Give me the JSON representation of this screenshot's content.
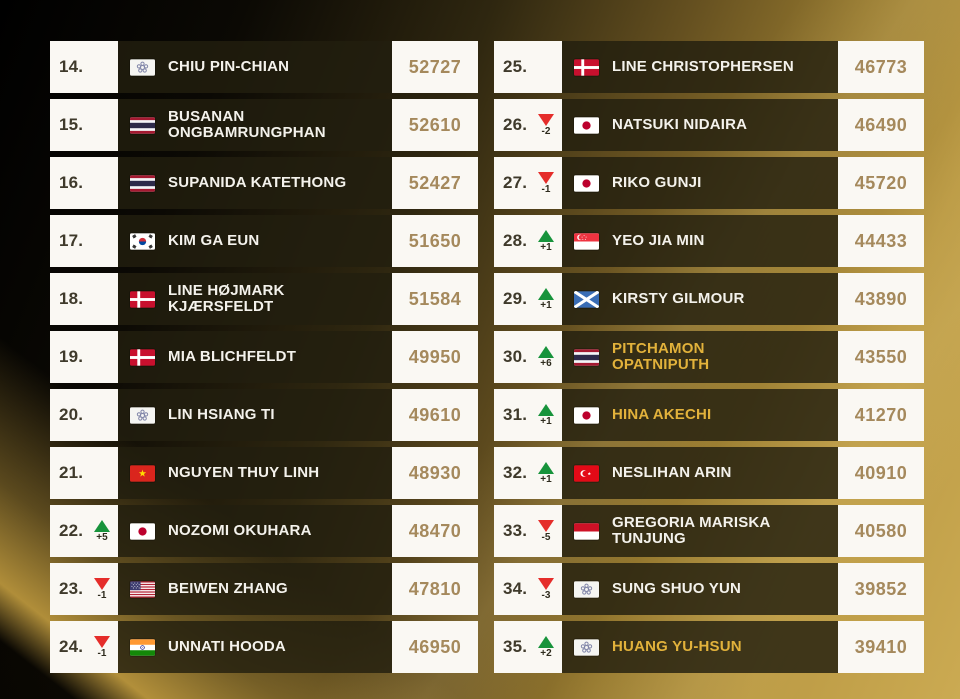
{
  "chart_data": {
    "type": "table",
    "left_rows": [
      {
        "rank": "14.",
        "country": "tpe",
        "name": "CHIU PIN-CHIAN",
        "points": "52727"
      },
      {
        "rank": "15.",
        "country": "tha",
        "name": "BUSANAN\nONGBAMRUNGPHAN",
        "points": "52610"
      },
      {
        "rank": "16.",
        "country": "tha",
        "name": "SUPANIDA KATETHONG",
        "points": "52427"
      },
      {
        "rank": "17.",
        "country": "kor",
        "name": "KIM GA EUN",
        "points": "51650"
      },
      {
        "rank": "18.",
        "country": "den",
        "name": "LINE HØJMARK\nKJÆRSFELDT",
        "points": "51584"
      },
      {
        "rank": "19.",
        "country": "den",
        "name": "MIA BLICHFELDT",
        "points": "49950"
      },
      {
        "rank": "20.",
        "country": "tpe",
        "name": "LIN HSIANG TI",
        "points": "49610"
      },
      {
        "rank": "21.",
        "country": "vie",
        "name": "NGUYEN THUY LINH",
        "points": "48930"
      },
      {
        "rank": "22.",
        "direction": "up",
        "change": "+5",
        "country": "jpn",
        "name": "NOZOMI OKUHARA",
        "points": "48470"
      },
      {
        "rank": "23.",
        "direction": "down",
        "change": "-1",
        "country": "usa",
        "name": "BEIWEN ZHANG",
        "points": "47810"
      },
      {
        "rank": "24.",
        "direction": "down",
        "change": "-1",
        "country": "ind",
        "name": "UNNATI HOODA",
        "points": "46950"
      }
    ],
    "right_rows": [
      {
        "rank": "25.",
        "country": "den",
        "name": "LINE CHRISTOPHERSEN",
        "points": "46773"
      },
      {
        "rank": "26.",
        "direction": "down",
        "change": "-2",
        "country": "jpn",
        "name": "NATSUKI NIDAIRA",
        "points": "46490"
      },
      {
        "rank": "27.",
        "direction": "down",
        "change": "-1",
        "country": "jpn",
        "name": "RIKO GUNJI",
        "points": "45720"
      },
      {
        "rank": "28.",
        "direction": "up",
        "change": "+1",
        "country": "sgp",
        "name": "YEO JIA MIN",
        "points": "44433"
      },
      {
        "rank": "29.",
        "direction": "up",
        "change": "+1",
        "country": "sco",
        "name": "KIRSTY GILMOUR",
        "points": "43890"
      },
      {
        "rank": "30.",
        "direction": "up",
        "change": "+6",
        "country": "tha",
        "name": "PITCHAMON\nOPATNIPUTH",
        "points": "43550",
        "highlight": true
      },
      {
        "rank": "31.",
        "direction": "up",
        "change": "+1",
        "country": "jpn",
        "name": "HINA AKECHI",
        "points": "41270",
        "highlight": true
      },
      {
        "rank": "32.",
        "direction": "up",
        "change": "+1",
        "country": "tur",
        "name": "NESLIHAN ARIN",
        "points": "40910"
      },
      {
        "rank": "33.",
        "direction": "down",
        "change": "-5",
        "country": "idn",
        "name": "GREGORIA MARISKA\nTUNJUNG",
        "points": "40580"
      },
      {
        "rank": "34.",
        "direction": "down",
        "change": "-3",
        "country": "tpe",
        "name": "SUNG SHUO YUN",
        "points": "39852"
      },
      {
        "rank": "35.",
        "direction": "up",
        "change": "+2",
        "country": "tpe",
        "name": "HUANG YU-HSUN",
        "points": "39410",
        "highlight": true
      }
    ]
  },
  "colors": {
    "highlight_name": "#e2b23b",
    "points_text": "#a5895c",
    "up_arrow": "#17933b",
    "down_arrow": "#e52d2a"
  }
}
